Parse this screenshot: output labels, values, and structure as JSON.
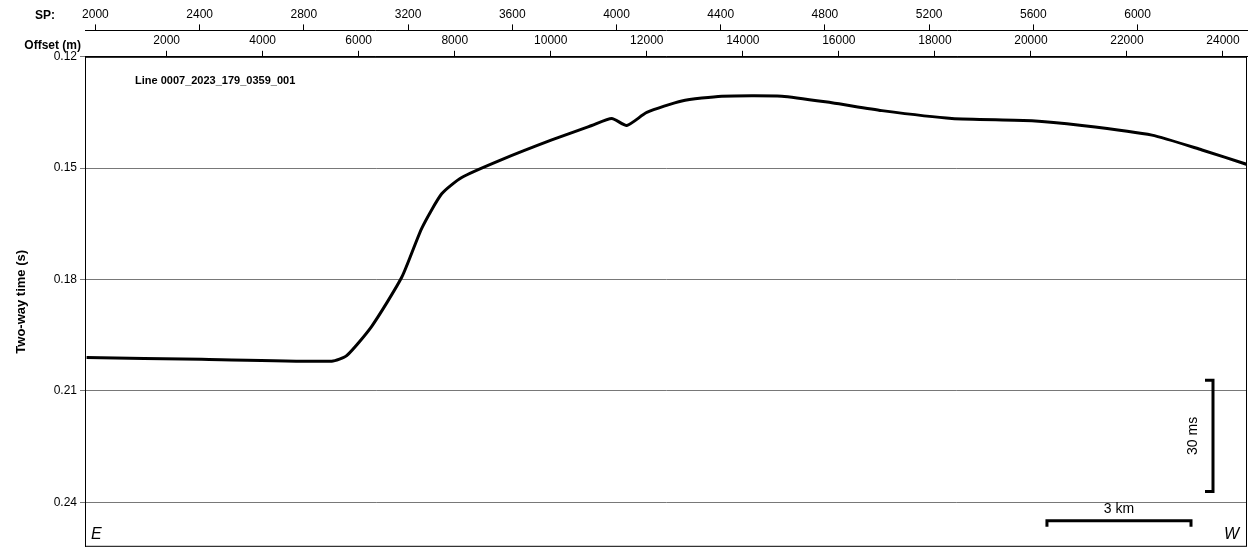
{
  "chart_data": {
    "type": "line",
    "title": "Line 0007_2023_179_0359_001",
    "x_label": "Offset (m)",
    "x2_label": "SP:",
    "y_label": "Two-way time (s)",
    "color": "#000000",
    "grid": true,
    "x": [
      333,
      2729,
      5438,
      5750,
      6271,
      6896,
      7313,
      7729,
      8146,
      8979,
      10021,
      10854,
      11271,
      11583,
      12000,
      12729,
      13563,
      14813,
      15854,
      16896,
      18354,
      20021,
      21063,
      22521,
      23563,
      24500
    ],
    "values": [
      0.201,
      0.2015,
      0.202,
      0.2005,
      0.1926,
      0.1794,
      0.1662,
      0.1569,
      0.1525,
      0.1477,
      0.1424,
      0.1385,
      0.1366,
      0.1385,
      0.135,
      0.1319,
      0.1306,
      0.1306,
      0.1324,
      0.1345,
      0.1366,
      0.1372,
      0.1385,
      0.1411,
      0.1451,
      0.149
    ],
    "xlim": [
      300,
      24500
    ],
    "xticks": [
      2000,
      4000,
      6000,
      8000,
      10000,
      12000,
      14000,
      16000,
      18000,
      20000,
      22000,
      24000
    ],
    "x2lim": [
      1960,
      6420
    ],
    "x2ticks": [
      2000,
      2400,
      2800,
      3200,
      3600,
      4000,
      4400,
      4800,
      5200,
      5600,
      6000
    ],
    "ylim": [
      0.12,
      0.252
    ],
    "yticks": [
      0.12,
      0.15,
      0.18,
      0.21,
      0.24
    ],
    "annotations": [
      "E",
      "W"
    ],
    "scale_bars": [
      {
        "label": "30 ms",
        "value": 0.03,
        "axis": "y"
      },
      {
        "label": "3 km",
        "value": 3000,
        "axis": "x"
      }
    ]
  }
}
